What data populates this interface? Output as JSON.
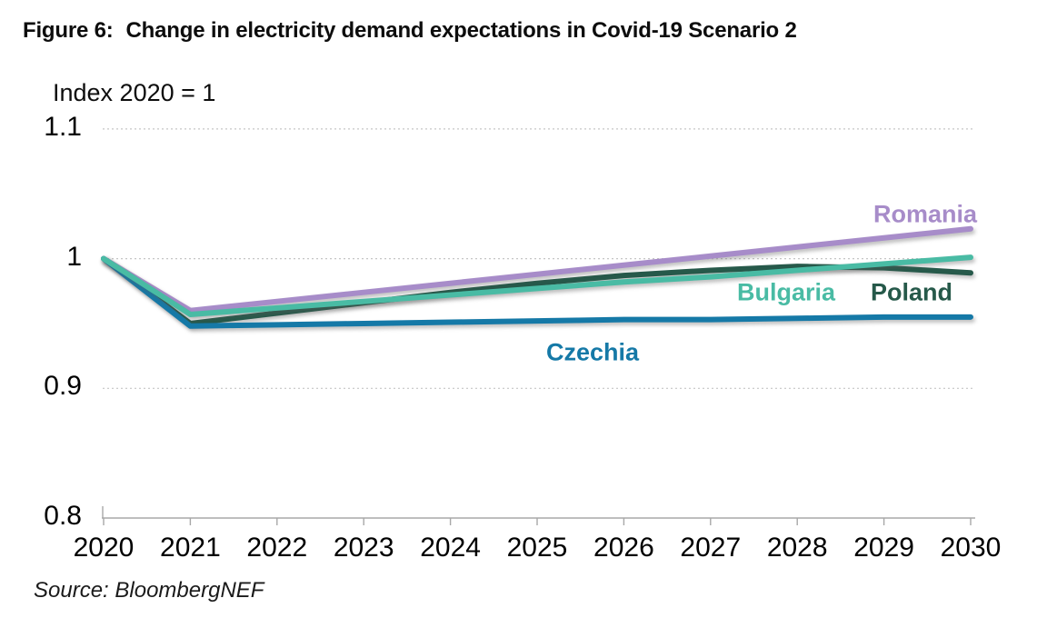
{
  "chart_data": {
    "type": "line",
    "title_prefix": "Figure 6:",
    "title": "Change in electricity demand expectations in Covid-19 Scenario 2",
    "ylabel": "Index 2020 = 1",
    "source": "Source: BloombergNEF",
    "x": [
      2020,
      2021,
      2022,
      2023,
      2024,
      2025,
      2026,
      2027,
      2028,
      2029,
      2030
    ],
    "xlim": [
      2020,
      2030
    ],
    "ylim": [
      0.8,
      1.1
    ],
    "y_ticks": [
      1.1,
      1.0,
      0.9,
      0.8
    ],
    "y_tick_labels": [
      "1.1",
      "1",
      "0.9",
      "0.8"
    ],
    "grid": "horizontal dashed gridlines at 0.9, 1.0, 1.1",
    "legend_position": "inline colored labels near line ends",
    "series": [
      {
        "name": "Romania",
        "color": "#a78cc9",
        "values": [
          1.0,
          0.96,
          0.967,
          0.974,
          0.981,
          0.988,
          0.995,
          1.002,
          1.009,
          1.016,
          1.023
        ]
      },
      {
        "name": "Bulgaria",
        "color": "#49bba4",
        "values": [
          1.0,
          0.957,
          0.962,
          0.967,
          0.972,
          0.977,
          0.982,
          0.986,
          0.991,
          0.996,
          1.001
        ]
      },
      {
        "name": "Poland",
        "color": "#26594a",
        "values": [
          1.0,
          0.95,
          0.958,
          0.966,
          0.974,
          0.981,
          0.987,
          0.991,
          0.994,
          0.993,
          0.989
        ]
      },
      {
        "name": "Czechia",
        "color": "#1579a7",
        "values": [
          1.0,
          0.948,
          0.949,
          0.95,
          0.951,
          0.952,
          0.953,
          0.953,
          0.954,
          0.955,
          0.955
        ]
      }
    ]
  }
}
